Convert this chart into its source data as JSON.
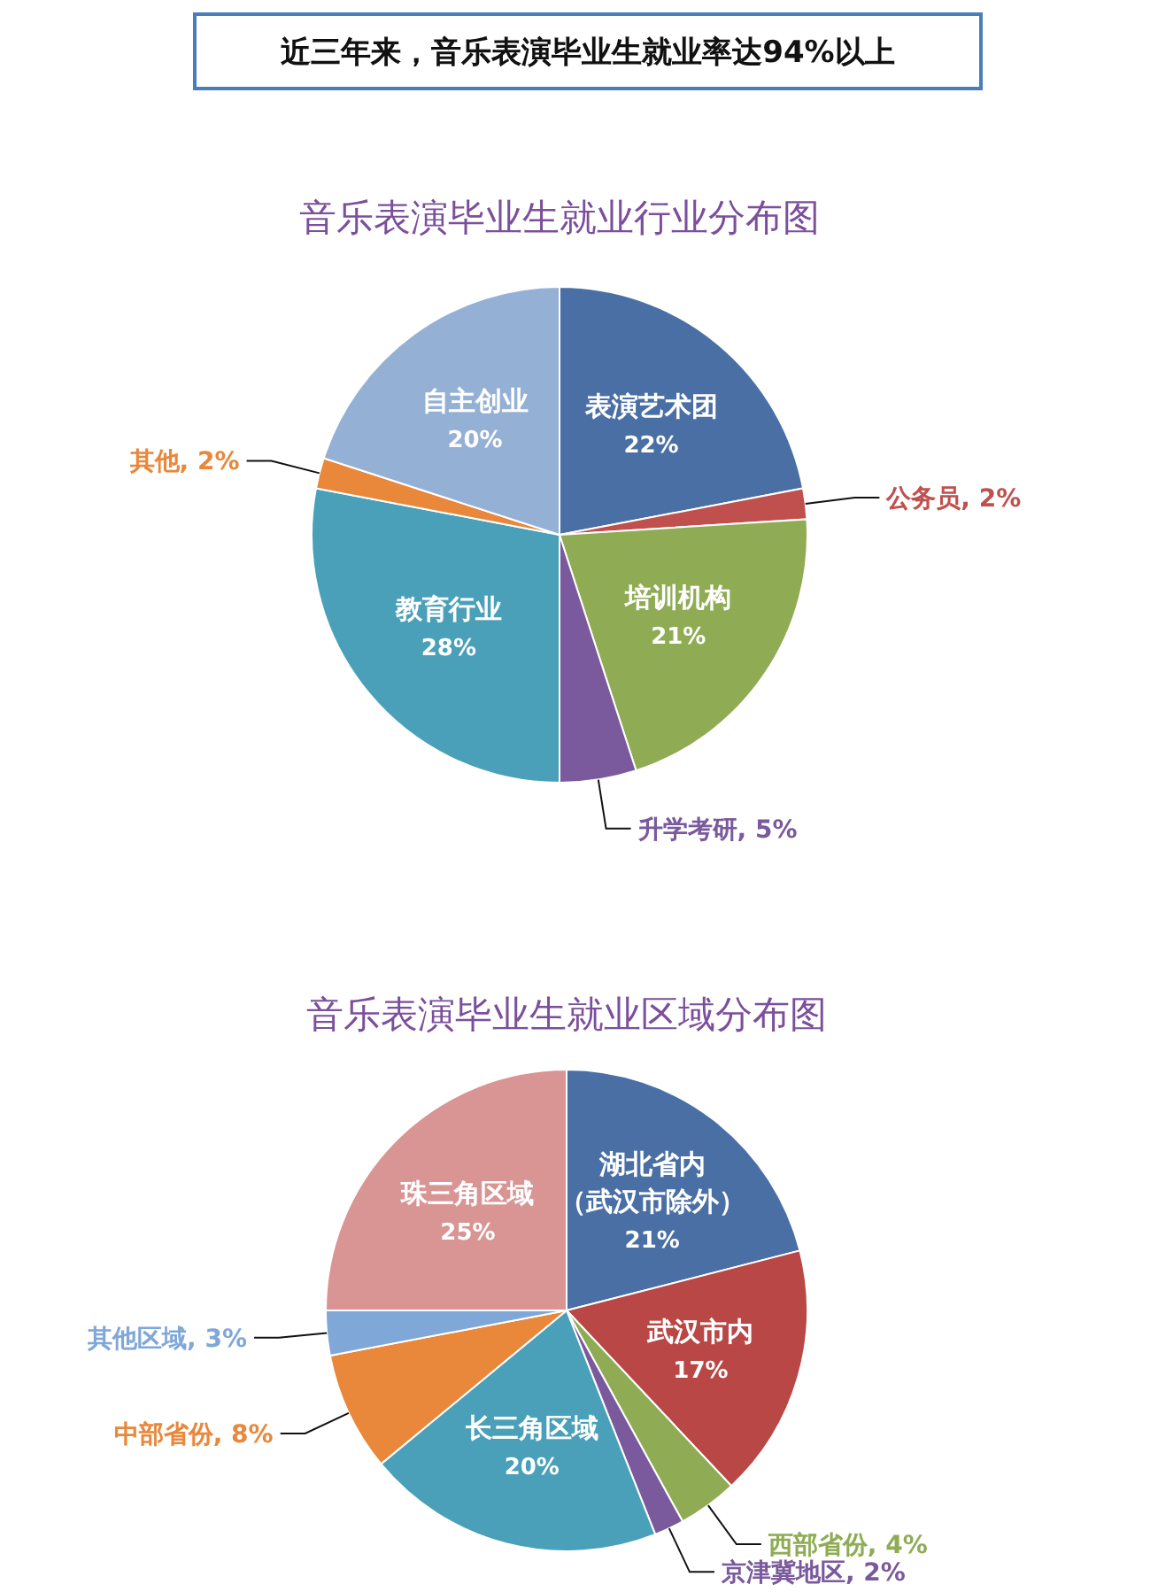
{
  "chart_data": [
    {
      "type": "other",
      "title": "近三年来，音乐表演毕业生就业率达94%以上"
    },
    {
      "type": "pie",
      "title": "音乐表演毕业生就业行业分布图",
      "categories": [
        "表演艺术团",
        "公务员",
        "培训机构",
        "升学考研",
        "教育行业",
        "其他",
        "自主创业"
      ],
      "values": [
        22,
        2,
        21,
        5,
        28,
        2,
        20
      ],
      "value_labels": [
        "22%",
        "2%",
        "21%",
        "5%",
        "28%",
        "2%",
        "20%"
      ],
      "colors": [
        "#4a6fa5",
        "#c0504d",
        "#8fac55",
        "#7a5a9c",
        "#4aa0b8",
        "#e9873b",
        "#95b0d5"
      ]
    },
    {
      "type": "pie",
      "title": "音乐表演毕业生就业区域分布图",
      "categories": [
        "湖北省内（武汉市除外）",
        "武汉市内",
        "西部省份",
        "京津冀地区",
        "长三角区域",
        "中部省份",
        "其他区域",
        "珠三角区域"
      ],
      "values": [
        21,
        17,
        4,
        2,
        20,
        8,
        3,
        25
      ],
      "value_labels": [
        "21%",
        "17%",
        "4%",
        "2%",
        "20%",
        "8%",
        "3%",
        "25%"
      ],
      "colors": [
        "#4a6fa5",
        "#b84745",
        "#8fac55",
        "#7a5a9c",
        "#4aa0b8",
        "#e9873b",
        "#7fa7d8",
        "#d89593"
      ]
    }
  ]
}
